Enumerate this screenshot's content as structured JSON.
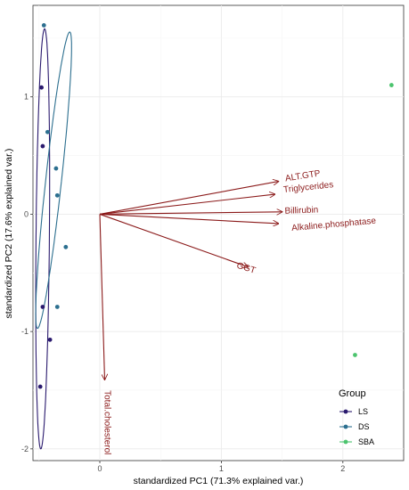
{
  "chart_data": {
    "type": "scatter",
    "subtype": "pca-biplot",
    "xlabel": "standardized PC1 (71.3% explained var.)",
    "ylabel": "standardized PC2 (17.6% explained var.)",
    "xlim": [
      -0.55,
      2.5
    ],
    "ylim": [
      -2.1,
      1.78
    ],
    "x_ticks": [
      0,
      1,
      2
    ],
    "y_ticks": [
      -2,
      -1,
      0,
      1
    ],
    "grid": true,
    "legend": {
      "title": "Group",
      "position": "bottom-right"
    },
    "series": [
      {
        "name": "LS",
        "color": "#2a1a6e",
        "x": [
          -0.48,
          -0.47,
          -0.47,
          -0.41,
          -0.49
        ],
        "y": [
          1.08,
          0.58,
          -0.79,
          -1.07,
          -1.47
        ]
      },
      {
        "name": "DS",
        "color": "#2c6f8f",
        "x": [
          -0.46,
          -0.43,
          -0.36,
          -0.35,
          -0.28,
          -0.35
        ],
        "y": [
          1.61,
          0.7,
          0.39,
          0.16,
          -0.28,
          -0.79
        ]
      },
      {
        "name": "SBA",
        "color": "#4cc46e",
        "x": [
          2.4,
          2.1
        ],
        "y": [
          1.1,
          -1.2
        ]
      }
    ],
    "ellipses": [
      {
        "group": "LS",
        "color": "#2a1a6e",
        "cx": -0.47,
        "cy": -0.21,
        "rx": 0.055,
        "ry": 1.79,
        "angle_deg": 0.5
      },
      {
        "group": "DS",
        "color": "#2c6f8f",
        "cx": -0.38,
        "cy": 0.29,
        "rx": 0.065,
        "ry": 1.27,
        "angle_deg": 6
      }
    ],
    "loadings": [
      {
        "name": "ALT.GTP",
        "x": 1.47,
        "y": 0.28
      },
      {
        "name": "Triglycerides",
        "x": 1.44,
        "y": 0.17
      },
      {
        "name": "Billirubin",
        "x": 1.5,
        "y": 0.02
      },
      {
        "name": "Alkaline.phosphatase",
        "x": 1.47,
        "y": -0.08
      },
      {
        "name": "GGT",
        "x": 1.22,
        "y": -0.45
      },
      {
        "name": "Total.cholesterol",
        "x": 0.04,
        "y": -1.41
      }
    ],
    "loading_color": "#8b1a1a"
  }
}
